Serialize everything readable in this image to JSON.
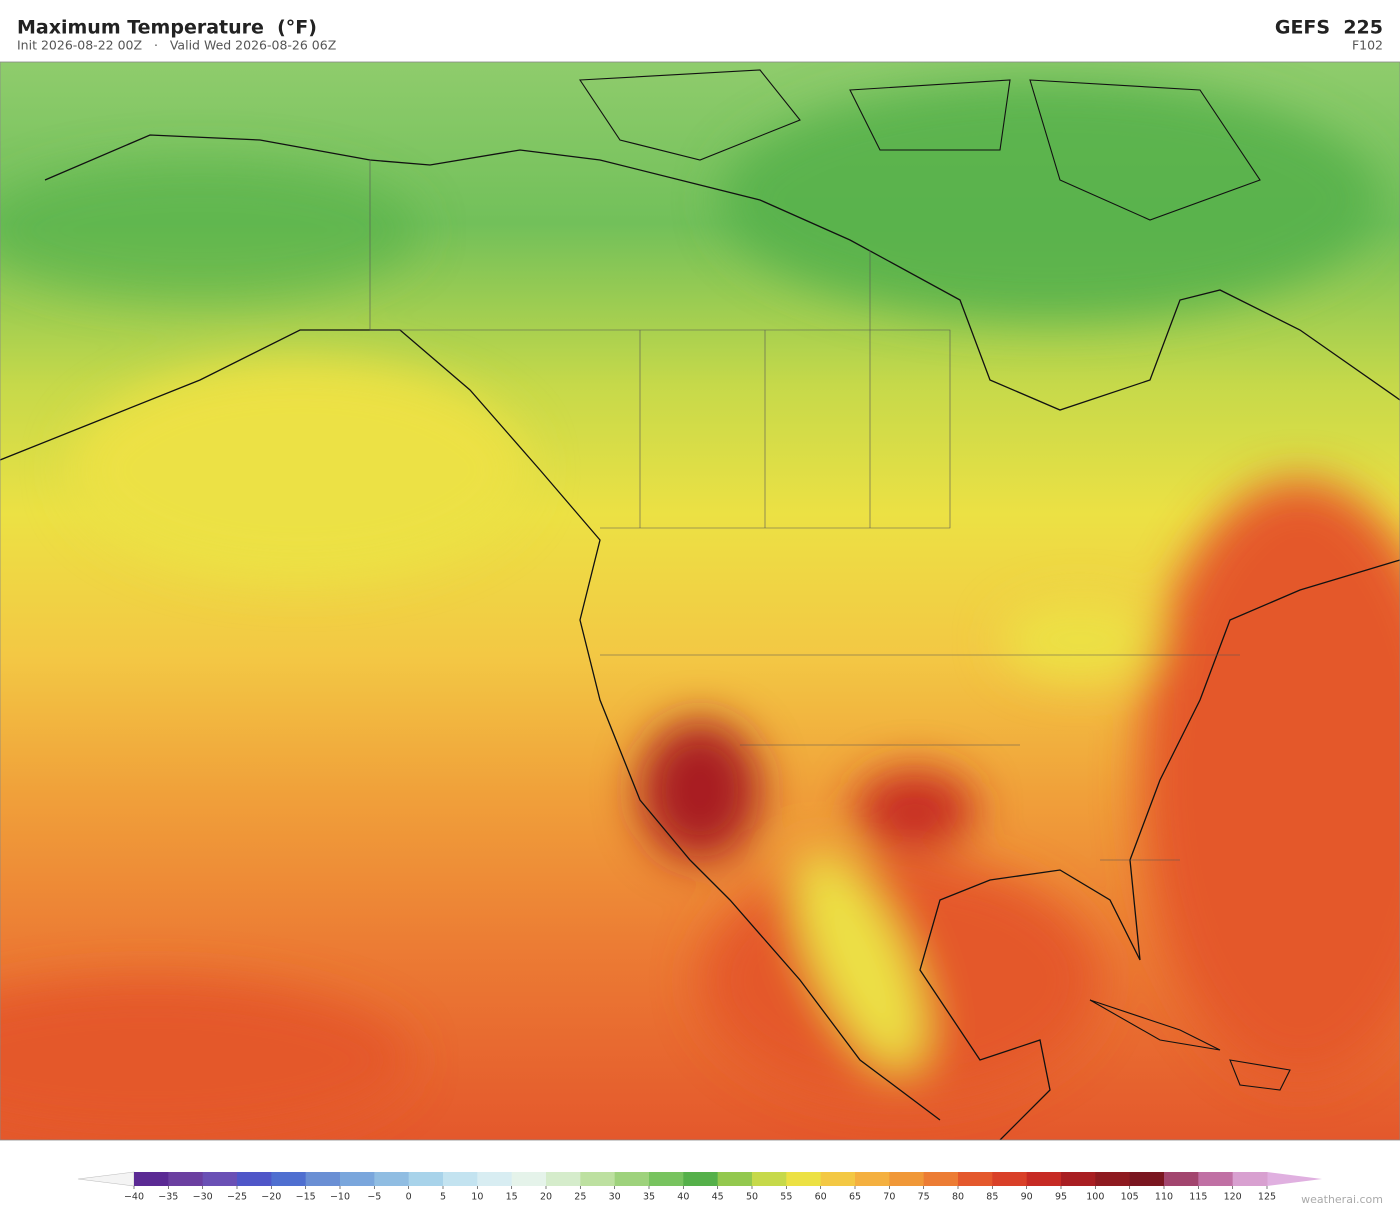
{
  "header": {
    "title": "Maximum Temperature  (°F)",
    "subtitle": "Init 2026-08-22 00Z   ·   Valid Wed 2026-08-26 06Z",
    "model": "GEFS  225",
    "forecast_hour": "F102"
  },
  "colorbar": {
    "ticks": [
      {
        "value": -40,
        "label": "−40"
      },
      {
        "value": -35,
        "label": "−35"
      },
      {
        "value": -30,
        "label": "−30"
      },
      {
        "value": -25,
        "label": "−25"
      },
      {
        "value": -20,
        "label": "−20"
      },
      {
        "value": -15,
        "label": "−15"
      },
      {
        "value": -10,
        "label": "−10"
      },
      {
        "value": -5,
        "label": "−5"
      },
      0,
      5,
      10,
      15,
      20,
      25,
      30,
      35,
      40,
      45,
      50,
      55,
      60,
      65,
      70,
      75,
      80,
      85,
      90,
      95,
      100,
      105,
      110,
      115,
      120,
      125
    ],
    "colors": [
      "#5b2a94",
      "#6b3fa0",
      "#6a50b5",
      "#4f56c8",
      "#4f6fd0",
      "#6a8fd4",
      "#7aa6dc",
      "#90bde2",
      "#a8d3ea",
      "#c3e3f0",
      "#d8edf2",
      "#e5f3ea",
      "#d5eccb",
      "#bde0a0",
      "#9ed27c",
      "#78c35f",
      "#55b04a",
      "#93c84e",
      "#c6d94a",
      "#ece144",
      "#f3c844",
      "#f4b040",
      "#f09838",
      "#ec7c34",
      "#e4582c",
      "#d94028",
      "#c62a24",
      "#a81e22",
      "#8e1a20",
      "#7a1620",
      "#a2456e",
      "#c070a4",
      "#d8a0d0"
    ],
    "under_color": "#f4f4f4",
    "over_color": "#e0b0e0"
  },
  "watermark": "weatherai.com"
}
